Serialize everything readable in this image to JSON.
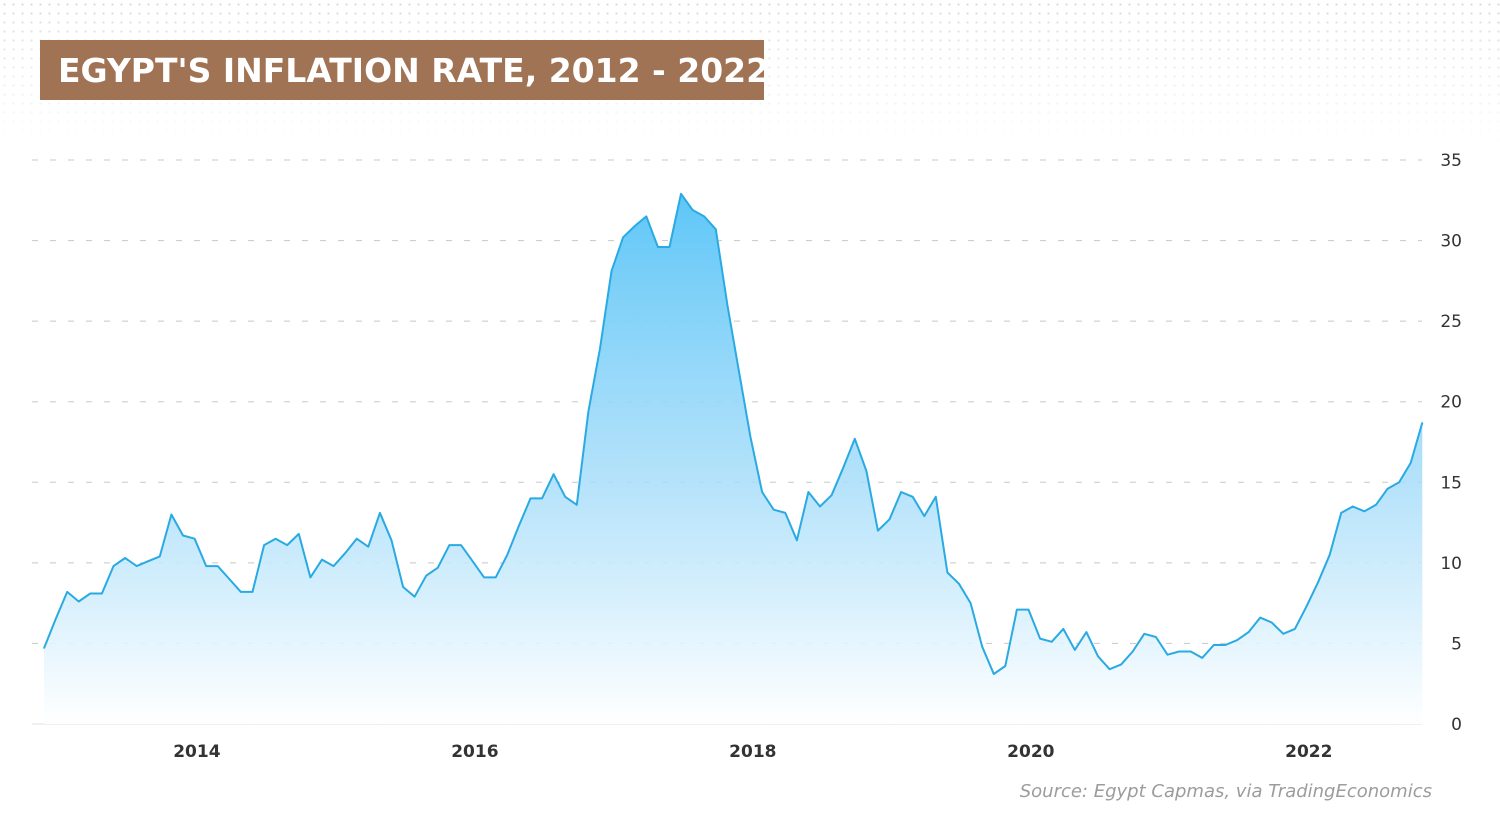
{
  "colors": {
    "title_bg": "#a07355",
    "line": "#29aae2",
    "fill_top": "#5ec6f7",
    "grid": "#c8c8c8",
    "text": "#333333",
    "source_text": "#9c9c9c"
  },
  "source": "Source: Egypt Capmas, via TradingEconomics",
  "chart_data": {
    "type": "area",
    "title": "EGYPT'S INFLATION RATE, 2012 - 2022",
    "xlabel": "",
    "ylabel": "",
    "ylim": [
      0,
      35
    ],
    "yticks": [
      "0",
      "5",
      "10",
      "15",
      "20",
      "25",
      "30",
      "35"
    ],
    "xlim": [
      2012.9,
      2022.8
    ],
    "xticks": [
      {
        "value": 2014,
        "label": "2014"
      },
      {
        "value": 2016,
        "label": "2016"
      },
      {
        "value": 2018,
        "label": "2018"
      },
      {
        "value": 2020,
        "label": "2020"
      },
      {
        "value": 2022,
        "label": "2022"
      }
    ],
    "grid": true,
    "legend": "none",
    "series": [
      {
        "x_start": 2012.9,
        "x_step": 0.083333,
        "values": [
          4.7,
          6.5,
          8.2,
          7.6,
          8.1,
          8.1,
          9.8,
          10.3,
          9.8,
          10.1,
          10.4,
          13.0,
          11.7,
          11.5,
          9.8,
          9.8,
          9.0,
          8.2,
          8.2,
          11.1,
          11.5,
          11.1,
          11.8,
          9.1,
          10.2,
          9.8,
          10.6,
          11.5,
          11.0,
          13.1,
          11.4,
          8.5,
          7.9,
          9.2,
          9.7,
          11.1,
          11.1,
          10.1,
          9.1,
          9.1,
          10.5,
          12.3,
          14.0,
          14.0,
          15.5,
          14.1,
          13.6,
          19.4,
          23.3,
          28.1,
          30.2,
          30.9,
          31.5,
          29.6,
          29.6,
          32.9,
          31.9,
          31.5,
          30.7,
          26.0,
          21.9,
          17.8,
          14.4,
          13.3,
          13.1,
          11.4,
          14.4,
          13.5,
          14.2,
          15.9,
          17.7,
          15.7,
          12.0,
          12.7,
          14.4,
          14.1,
          12.9,
          14.1,
          9.4,
          8.7,
          7.5,
          4.8,
          3.1,
          3.6,
          7.1,
          7.1,
          5.3,
          5.1,
          5.9,
          4.6,
          5.7,
          4.2,
          3.4,
          3.7,
          4.5,
          5.6,
          5.4,
          4.3,
          4.5,
          4.5,
          4.1,
          4.9,
          4.9,
          5.2,
          5.7,
          6.6,
          6.3,
          5.6,
          5.9,
          7.3,
          8.8,
          10.5,
          13.1,
          13.5,
          13.2,
          13.6,
          14.6,
          15.0,
          16.2,
          18.7
        ]
      }
    ]
  }
}
